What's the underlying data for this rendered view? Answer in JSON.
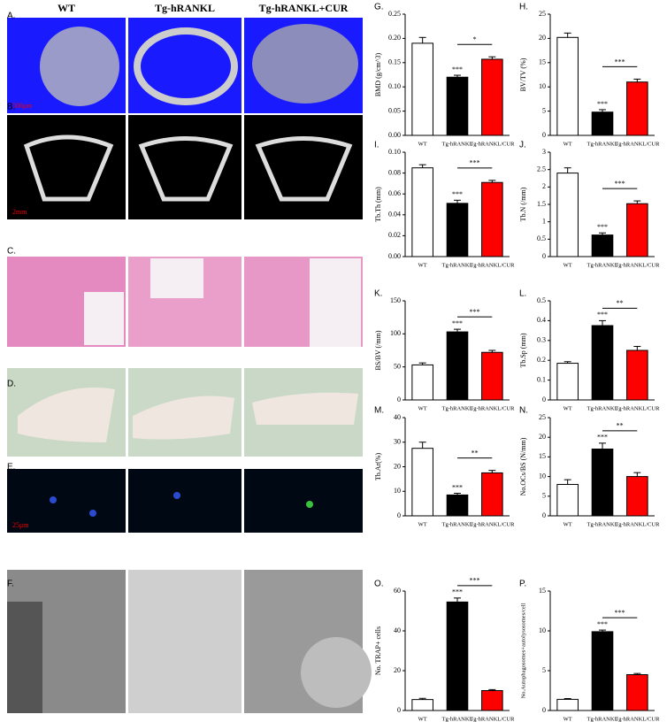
{
  "figure": {
    "column_headers": [
      "WT",
      "Tg-hRANKL",
      "Tg-hRANKL+CUR"
    ],
    "panel_labels": [
      "A.",
      "B.",
      "C.",
      "D.",
      "E.",
      "F."
    ],
    "scale_bars": [
      "500μm",
      "2mm",
      "25μm"
    ]
  },
  "chart_data": [
    {
      "type": "bar",
      "panel_label": "G.",
      "ylabel": "BMD (g/cm^3)",
      "categories": [
        "WT",
        "Tg-hRANKL",
        "Tg-hRANKL/CUR"
      ],
      "colors": [
        "#ffffff",
        "#000000",
        "#ff0000"
      ],
      "values": [
        0.19,
        0.12,
        0.157
      ],
      "errors": [
        0.012,
        0.004,
        0.005
      ],
      "significance": [
        "***",
        "*"
      ],
      "ylim": [
        0,
        0.25
      ],
      "yticks": [
        {
          "value": 0,
          "label": "0.00"
        },
        0.05,
        {
          "value": 0.1,
          "label": "0.10"
        },
        0.15,
        {
          "value": 0.2,
          "label": "0.20"
        },
        0.25
      ]
    },
    {
      "type": "bar",
      "panel_label": "H.",
      "ylabel": "BV/TV (%)",
      "categories": [
        "WT",
        "Tg-hRANKL",
        "Tg-hRANKL/CUR"
      ],
      "colors": [
        "#ffffff",
        "#000000",
        "#ff0000"
      ],
      "values": [
        20.2,
        4.8,
        11
      ],
      "errors": [
        0.9,
        0.5,
        0.6
      ],
      "significance": [
        "***",
        "***"
      ],
      "ylim": [
        0,
        25
      ],
      "yticks": [
        0,
        5,
        10,
        15,
        20,
        25
      ]
    },
    {
      "type": "bar",
      "panel_label": "I.",
      "ylabel": "Tb.Th (mm)",
      "categories": [
        "WT",
        "Tg-hRANKL",
        "Tg-hRANKL/CUR"
      ],
      "colors": [
        "#ffffff",
        "#000000",
        "#ff0000"
      ],
      "values": [
        0.085,
        0.051,
        0.071
      ],
      "errors": [
        0.003,
        0.003,
        0.002
      ],
      "significance": [
        "***",
        "***"
      ],
      "ylim": [
        0,
        0.1
      ],
      "yticks": [
        {
          "value": 0,
          "label": "0.00"
        },
        0.02,
        0.04,
        0.06,
        0.08,
        {
          "value": 0.1,
          "label": "0.10"
        }
      ]
    },
    {
      "type": "bar",
      "panel_label": "J.",
      "ylabel": "Tb.N (/mm)",
      "categories": [
        "WT",
        "Tg-hRANKL",
        "Tg-hRANKL/CUR"
      ],
      "colors": [
        "#ffffff",
        "#000000",
        "#ff0000"
      ],
      "values": [
        2.4,
        0.62,
        1.52
      ],
      "errors": [
        0.15,
        0.06,
        0.08
      ],
      "significance": [
        "***",
        "***"
      ],
      "ylim": [
        0,
        3
      ],
      "yticks": [
        0,
        0.5,
        1,
        1.5,
        2,
        2.5,
        3
      ]
    },
    {
      "type": "bar",
      "panel_label": "K.",
      "ylabel": "BS/BV (/mm)",
      "categories": [
        "WT",
        "Tg-hRANKL",
        "Tg-hRANKL/CUR"
      ],
      "colors": [
        "#ffffff",
        "#000000",
        "#ff0000"
      ],
      "values": [
        53,
        103,
        72
      ],
      "errors": [
        3,
        4,
        3
      ],
      "significance": [
        "***",
        "***"
      ],
      "ylim": [
        0,
        150
      ],
      "yticks": [
        0,
        50,
        100,
        150
      ]
    },
    {
      "type": "bar",
      "panel_label": "L.",
      "ylabel": "Tb.Sp (mm)",
      "categories": [
        "WT",
        "Tg-hRANKL",
        "Tg-hRANKL/CUR"
      ],
      "colors": [
        "#ffffff",
        "#000000",
        "#ff0000"
      ],
      "values": [
        0.185,
        0.375,
        0.25
      ],
      "errors": [
        0.008,
        0.025,
        0.02
      ],
      "significance": [
        "***",
        "**"
      ],
      "ylim": [
        0,
        0.5
      ],
      "yticks": [
        0,
        0.1,
        0.2,
        0.3,
        0.4,
        0.5
      ]
    },
    {
      "type": "bar",
      "panel_label": "M.",
      "ylabel": "Tb.Ar(%)",
      "categories": [
        "WT",
        "Tg-hRANKL",
        "Tg-hRANKL/CUR"
      ],
      "colors": [
        "#ffffff",
        "#000000",
        "#ff0000"
      ],
      "values": [
        27.5,
        8.5,
        17.5
      ],
      "errors": [
        2.5,
        0.7,
        1
      ],
      "significance": [
        "***",
        "**"
      ],
      "ylim": [
        0,
        40
      ],
      "yticks": [
        0,
        10,
        20,
        30,
        40
      ]
    },
    {
      "type": "bar",
      "panel_label": "N.",
      "ylabel": "No.OCs/BS (N/mm)",
      "categories": [
        "WT",
        "Tg-hRANKL",
        "Tg-hRANKL/CUR"
      ],
      "colors": [
        "#ffffff",
        "#000000",
        "#ff0000"
      ],
      "values": [
        8,
        17,
        10
      ],
      "errors": [
        1.2,
        1.5,
        1
      ],
      "significance": [
        "***",
        "**"
      ],
      "ylim": [
        0,
        25
      ],
      "yticks": [
        0,
        5,
        10,
        15,
        20,
        25
      ]
    },
    {
      "type": "bar",
      "panel_label": "O.",
      "ylabel": "No. TRAP+ cells",
      "categories": [
        "WT",
        "Tg-hRANKL",
        "Tg-hRANKL/CUR"
      ],
      "colors": [
        "#ffffff",
        "#000000",
        "#ff0000"
      ],
      "values": [
        5.5,
        54.5,
        10
      ],
      "errors": [
        0.6,
        2,
        0.5
      ],
      "significance": [
        "***",
        "***"
      ],
      "ylim": [
        0,
        60
      ],
      "yticks": [
        0,
        20,
        40,
        60
      ]
    },
    {
      "type": "bar",
      "panel_label": "P.",
      "ylabel": "No.Autophagosomes+autolysosomes/cell",
      "categories": [
        "WT",
        "Tg-hRANKL",
        "Tg-hRANKL/CUR"
      ],
      "colors": [
        "#ffffff",
        "#000000",
        "#ff0000"
      ],
      "values": [
        1.4,
        9.9,
        4.5
      ],
      "errors": [
        0.1,
        0.2,
        0.15
      ],
      "significance": [
        "***",
        "***"
      ],
      "ylim": [
        0,
        15
      ],
      "yticks": [
        0,
        5,
        10,
        15
      ]
    }
  ]
}
